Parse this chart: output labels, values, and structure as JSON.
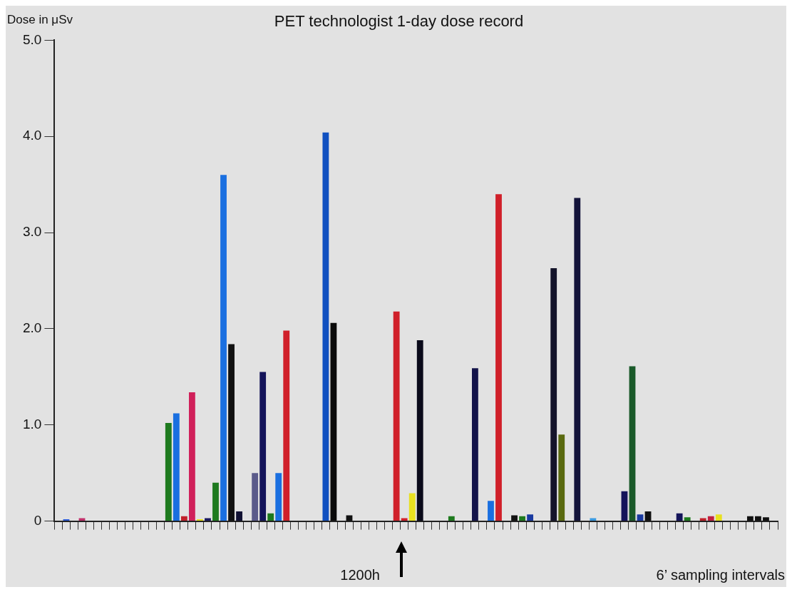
{
  "chart_data": {
    "type": "bar",
    "title": "PET technologist 1-day dose record",
    "ylabel": "Dose in μSv",
    "xlabel": "6’ sampling intervals",
    "annotations": [
      "1200h"
    ],
    "categories": [
      null,
      null,
      null,
      null,
      null,
      null,
      null,
      null,
      null,
      null,
      null,
      null,
      null,
      null,
      null,
      null,
      null,
      null,
      null,
      null,
      null,
      null,
      null,
      null,
      null,
      null,
      null,
      null,
      null,
      null,
      null,
      null,
      null,
      null,
      null,
      null,
      null,
      null,
      null,
      null,
      null,
      null,
      null,
      null,
      null,
      null,
      null,
      null,
      null,
      null,
      null,
      null,
      null,
      null,
      null,
      null,
      null,
      null,
      null,
      null,
      null,
      null,
      null,
      null,
      null,
      null,
      null,
      null,
      null,
      null,
      null,
      null,
      null,
      null,
      null,
      null,
      null,
      null,
      null,
      null,
      null,
      null,
      null,
      null,
      null,
      null,
      null,
      null,
      null,
      null,
      null,
      null
    ],
    "values": [
      0,
      0.02,
      0,
      0.03,
      0,
      0,
      0,
      0,
      0,
      0,
      0,
      0,
      0,
      0,
      1.02,
      1.12,
      0.05,
      1.34,
      0.02,
      0.03,
      0.4,
      3.6,
      1.84,
      0.1,
      0,
      0.5,
      1.55,
      0.08,
      0.5,
      1.98,
      0,
      0,
      0,
      0,
      4.04,
      2.06,
      0,
      0.06,
      0,
      0,
      0,
      0,
      0,
      2.18,
      0.03,
      0.29,
      1.88,
      0,
      0,
      0,
      0.05,
      0,
      0,
      1.59,
      0,
      0.21,
      3.4,
      0,
      0.06,
      0.05,
      0.07,
      0,
      0,
      2.63,
      0.9,
      0,
      3.36,
      0,
      0.03,
      0,
      0,
      0,
      0.31,
      1.61,
      0.07,
      0.1,
      0,
      0,
      0,
      0.08,
      0.04,
      0,
      0.03,
      0.05,
      0.07,
      0,
      0,
      0,
      0.05,
      0.05,
      0.04,
      0
    ],
    "colors": [
      "#111111",
      "#2a5ad6",
      "#111111",
      "#c0306a",
      "#111111",
      "#111111",
      "#111111",
      "#111111",
      "#111111",
      "#111111",
      "#111111",
      "#111111",
      "#111111",
      "#111111",
      "#1e7a1e",
      "#1a6fe0",
      "#c0202a",
      "#d0205a",
      "#e8e020",
      "#1a1a60",
      "#1e7a1e",
      "#1a6fe0",
      "#111111",
      "#111133",
      "#111111",
      "#5a5a8a",
      "#14145a",
      "#1e7a1e",
      "#1a6fe0",
      "#d0202a",
      "#111111",
      "#111111",
      "#111111",
      "#111111",
      "#1050c0",
      "#0a0a0a",
      "#111111",
      "#111111",
      "#111111",
      "#111111",
      "#111111",
      "#111111",
      "#111111",
      "#d0202a",
      "#d0202a",
      "#e8e020",
      "#0a0a1a",
      "#111111",
      "#111111",
      "#111111",
      "#1e7a1e",
      "#111111",
      "#111111",
      "#14144a",
      "#111111",
      "#1a6fe0",
      "#d0202a",
      "#111111",
      "#111111",
      "#1e7a1e",
      "#1a3aa0",
      "#111111",
      "#111111",
      "#14142a",
      "#5a6a10",
      "#111111",
      "#14143a",
      "#111111",
      "#3a9ae0",
      "#111111",
      "#111111",
      "#111111",
      "#14145a",
      "#1a5a2a",
      "#1a3aa0",
      "#111111",
      "#111111",
      "#111111",
      "#111111",
      "#14145a",
      "#1e7a1e",
      "#111111",
      "#c0202a",
      "#c02040",
      "#e8e020",
      "#111111",
      "#111111",
      "#111111",
      "#111111",
      "#111111",
      "#111111",
      "#111111"
    ],
    "ylim": [
      0,
      5
    ],
    "yticks": [
      0,
      {
        "value": 1,
        "label": "1.0"
      },
      {
        "value": 2,
        "label": "2.0"
      },
      {
        "value": 3,
        "label": "3.0"
      },
      {
        "value": 4,
        "label": "4.0"
      },
      {
        "value": 5,
        "label": "5.0"
      }
    ],
    "grid": false,
    "legend": false
  }
}
